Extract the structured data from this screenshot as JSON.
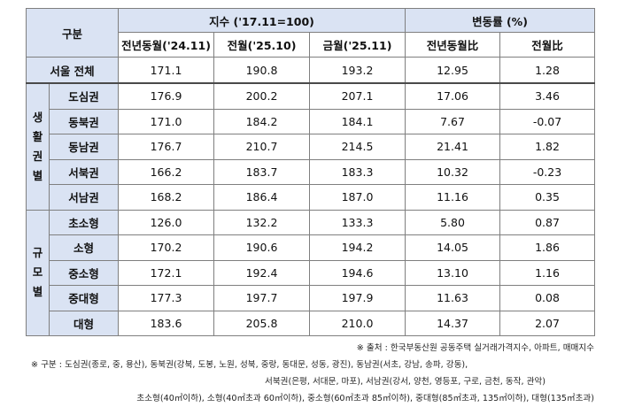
{
  "header": {
    "category": "구분",
    "index_group": "지수 ('17.11=100)",
    "change_group": "변동률 (%)",
    "col_yoy_month": "전년동월('24.11)",
    "col_prev_month": "전월('25.10)",
    "col_this_month": "금월('25.11)",
    "col_yoy_rate": "전년동월比",
    "col_mom_rate": "전월比"
  },
  "seoul": {
    "label": "서울 전체",
    "values": [
      "171.1",
      "190.8",
      "193.2",
      "12.95",
      "1.28"
    ]
  },
  "groups": [
    {
      "label_chars": [
        "생",
        "활",
        "권",
        "별"
      ],
      "rows": [
        {
          "label": "도심권",
          "values": [
            "176.9",
            "200.2",
            "207.1",
            "17.06",
            "3.46"
          ]
        },
        {
          "label": "동북권",
          "values": [
            "171.0",
            "184.2",
            "184.1",
            "7.67",
            "-0.07"
          ]
        },
        {
          "label": "동남권",
          "values": [
            "176.7",
            "210.7",
            "214.5",
            "21.41",
            "1.82"
          ]
        },
        {
          "label": "서북권",
          "values": [
            "166.2",
            "183.7",
            "183.3",
            "10.32",
            "-0.23"
          ]
        },
        {
          "label": "서남권",
          "values": [
            "168.2",
            "186.4",
            "187.0",
            "11.16",
            "0.35"
          ]
        }
      ]
    },
    {
      "label_chars": [
        "규",
        "모",
        "별"
      ],
      "rows": [
        {
          "label": "초소형",
          "values": [
            "126.0",
            "132.2",
            "133.3",
            "5.80",
            "0.87"
          ]
        },
        {
          "label": "소형",
          "values": [
            "170.2",
            "190.6",
            "194.2",
            "14.05",
            "1.86"
          ]
        },
        {
          "label": "중소형",
          "values": [
            "172.1",
            "192.4",
            "194.6",
            "13.10",
            "1.16"
          ]
        },
        {
          "label": "중대형",
          "values": [
            "177.3",
            "197.7",
            "197.9",
            "11.63",
            "0.08"
          ]
        },
        {
          "label": "대형",
          "values": [
            "183.6",
            "205.8",
            "210.0",
            "14.37",
            "2.07"
          ]
        }
      ]
    }
  ],
  "notes": {
    "source": "※ 출처 : 한국부동산원 공동주택 실거래가격지수, 아파트, 매매지수",
    "region_line1": "※ 구분 : 도심권(종로, 중, 용산), 동북권(강북, 도봉, 노원, 성북, 중랑, 동대문, 성동, 광진), 동남권(서초, 강남, 송파, 강동),",
    "region_line2": "서북권(은평, 서대문, 마포), 서남권(강서, 양천, 영등포, 구로, 금천, 동작, 관악)",
    "size_line": "초소형(40㎡이하), 소형(40㎡초과 60㎡이하), 중소형(60㎡초과 85㎡이하), 중대형(85㎡초과, 135㎡이하), 대형(135㎡초과)"
  }
}
